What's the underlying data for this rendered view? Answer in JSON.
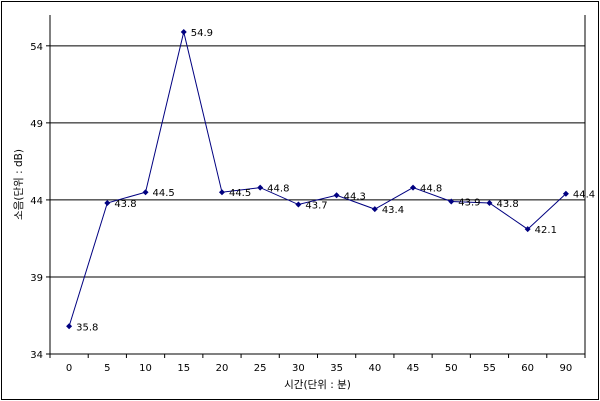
{
  "chart_data": {
    "type": "line",
    "categories": [
      "0",
      "5",
      "10",
      "15",
      "20",
      "25",
      "30",
      "35",
      "40",
      "45",
      "50",
      "55",
      "60",
      "90"
    ],
    "series": [
      {
        "values": [
          35.8,
          43.8,
          44.5,
          54.9,
          44.5,
          44.8,
          43.7,
          44.3,
          43.4,
          44.8,
          43.9,
          43.8,
          42.1,
          44.4
        ],
        "labels": [
          "35.8",
          "43.8",
          "44.5",
          "54.9",
          "44.5",
          "44.8",
          "43.7",
          "44.3",
          "43.4",
          "44.8",
          "43.9",
          "43.8",
          "42.1",
          "44.4"
        ]
      }
    ],
    "xlabel": "시간(단위 : 분)",
    "ylabel": "소음(단위 : dB)",
    "ylim": [
      34,
      56
    ],
    "yticks": [
      34,
      39,
      44,
      49,
      54
    ],
    "ytick_labels": [
      "34",
      "39",
      "44",
      "49",
      "54"
    ],
    "grid": "horizontal",
    "colors": {
      "line": "#000080",
      "marker": "#000080",
      "grid": "#000000"
    }
  }
}
